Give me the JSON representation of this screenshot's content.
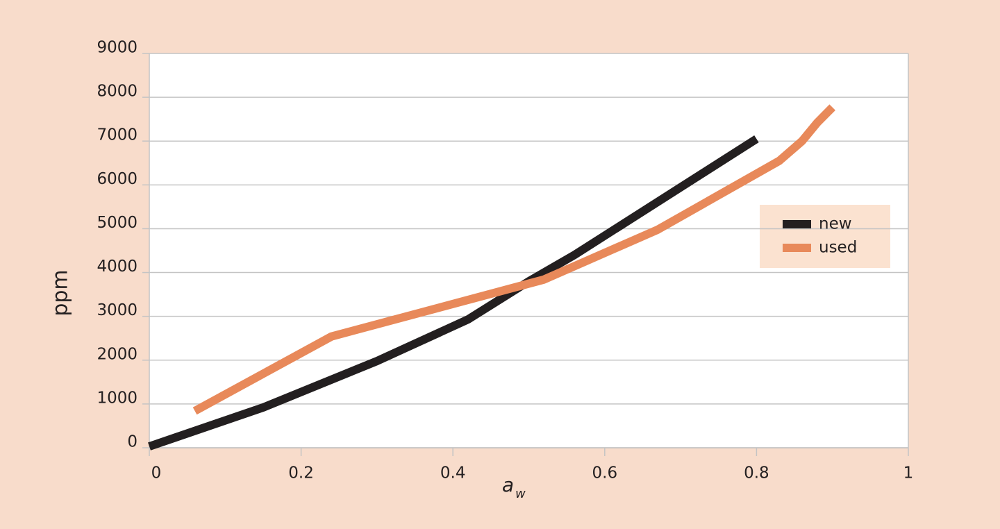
{
  "chart_data": {
    "type": "line",
    "y_label": "ppm",
    "x_label": "a",
    "x_label_subscript": "w",
    "xlim": [
      0,
      1
    ],
    "xticks": [
      0,
      0.2,
      0.4,
      0.6,
      0.8,
      1
    ],
    "ylim": [
      0,
      9000
    ],
    "yticks": [
      0,
      1000,
      2000,
      3000,
      4000,
      5000,
      6000,
      7000,
      8000,
      9000
    ],
    "grid": true,
    "legend": "right",
    "series": [
      {
        "name": "new",
        "color": "#231f20",
        "x": [
          0,
          0.15,
          0.3,
          0.42,
          0.5,
          0.56,
          0.8
        ],
        "values": [
          30,
          920,
          1980,
          2930,
          3800,
          4400,
          7050
        ]
      },
      {
        "name": "used",
        "color": "#e8895a",
        "x": [
          0.06,
          0.24,
          0.52,
          0.67,
          0.83,
          0.86,
          0.88,
          0.9
        ],
        "values": [
          840,
          2540,
          3840,
          4980,
          6550,
          7000,
          7420,
          7770
        ]
      }
    ]
  }
}
